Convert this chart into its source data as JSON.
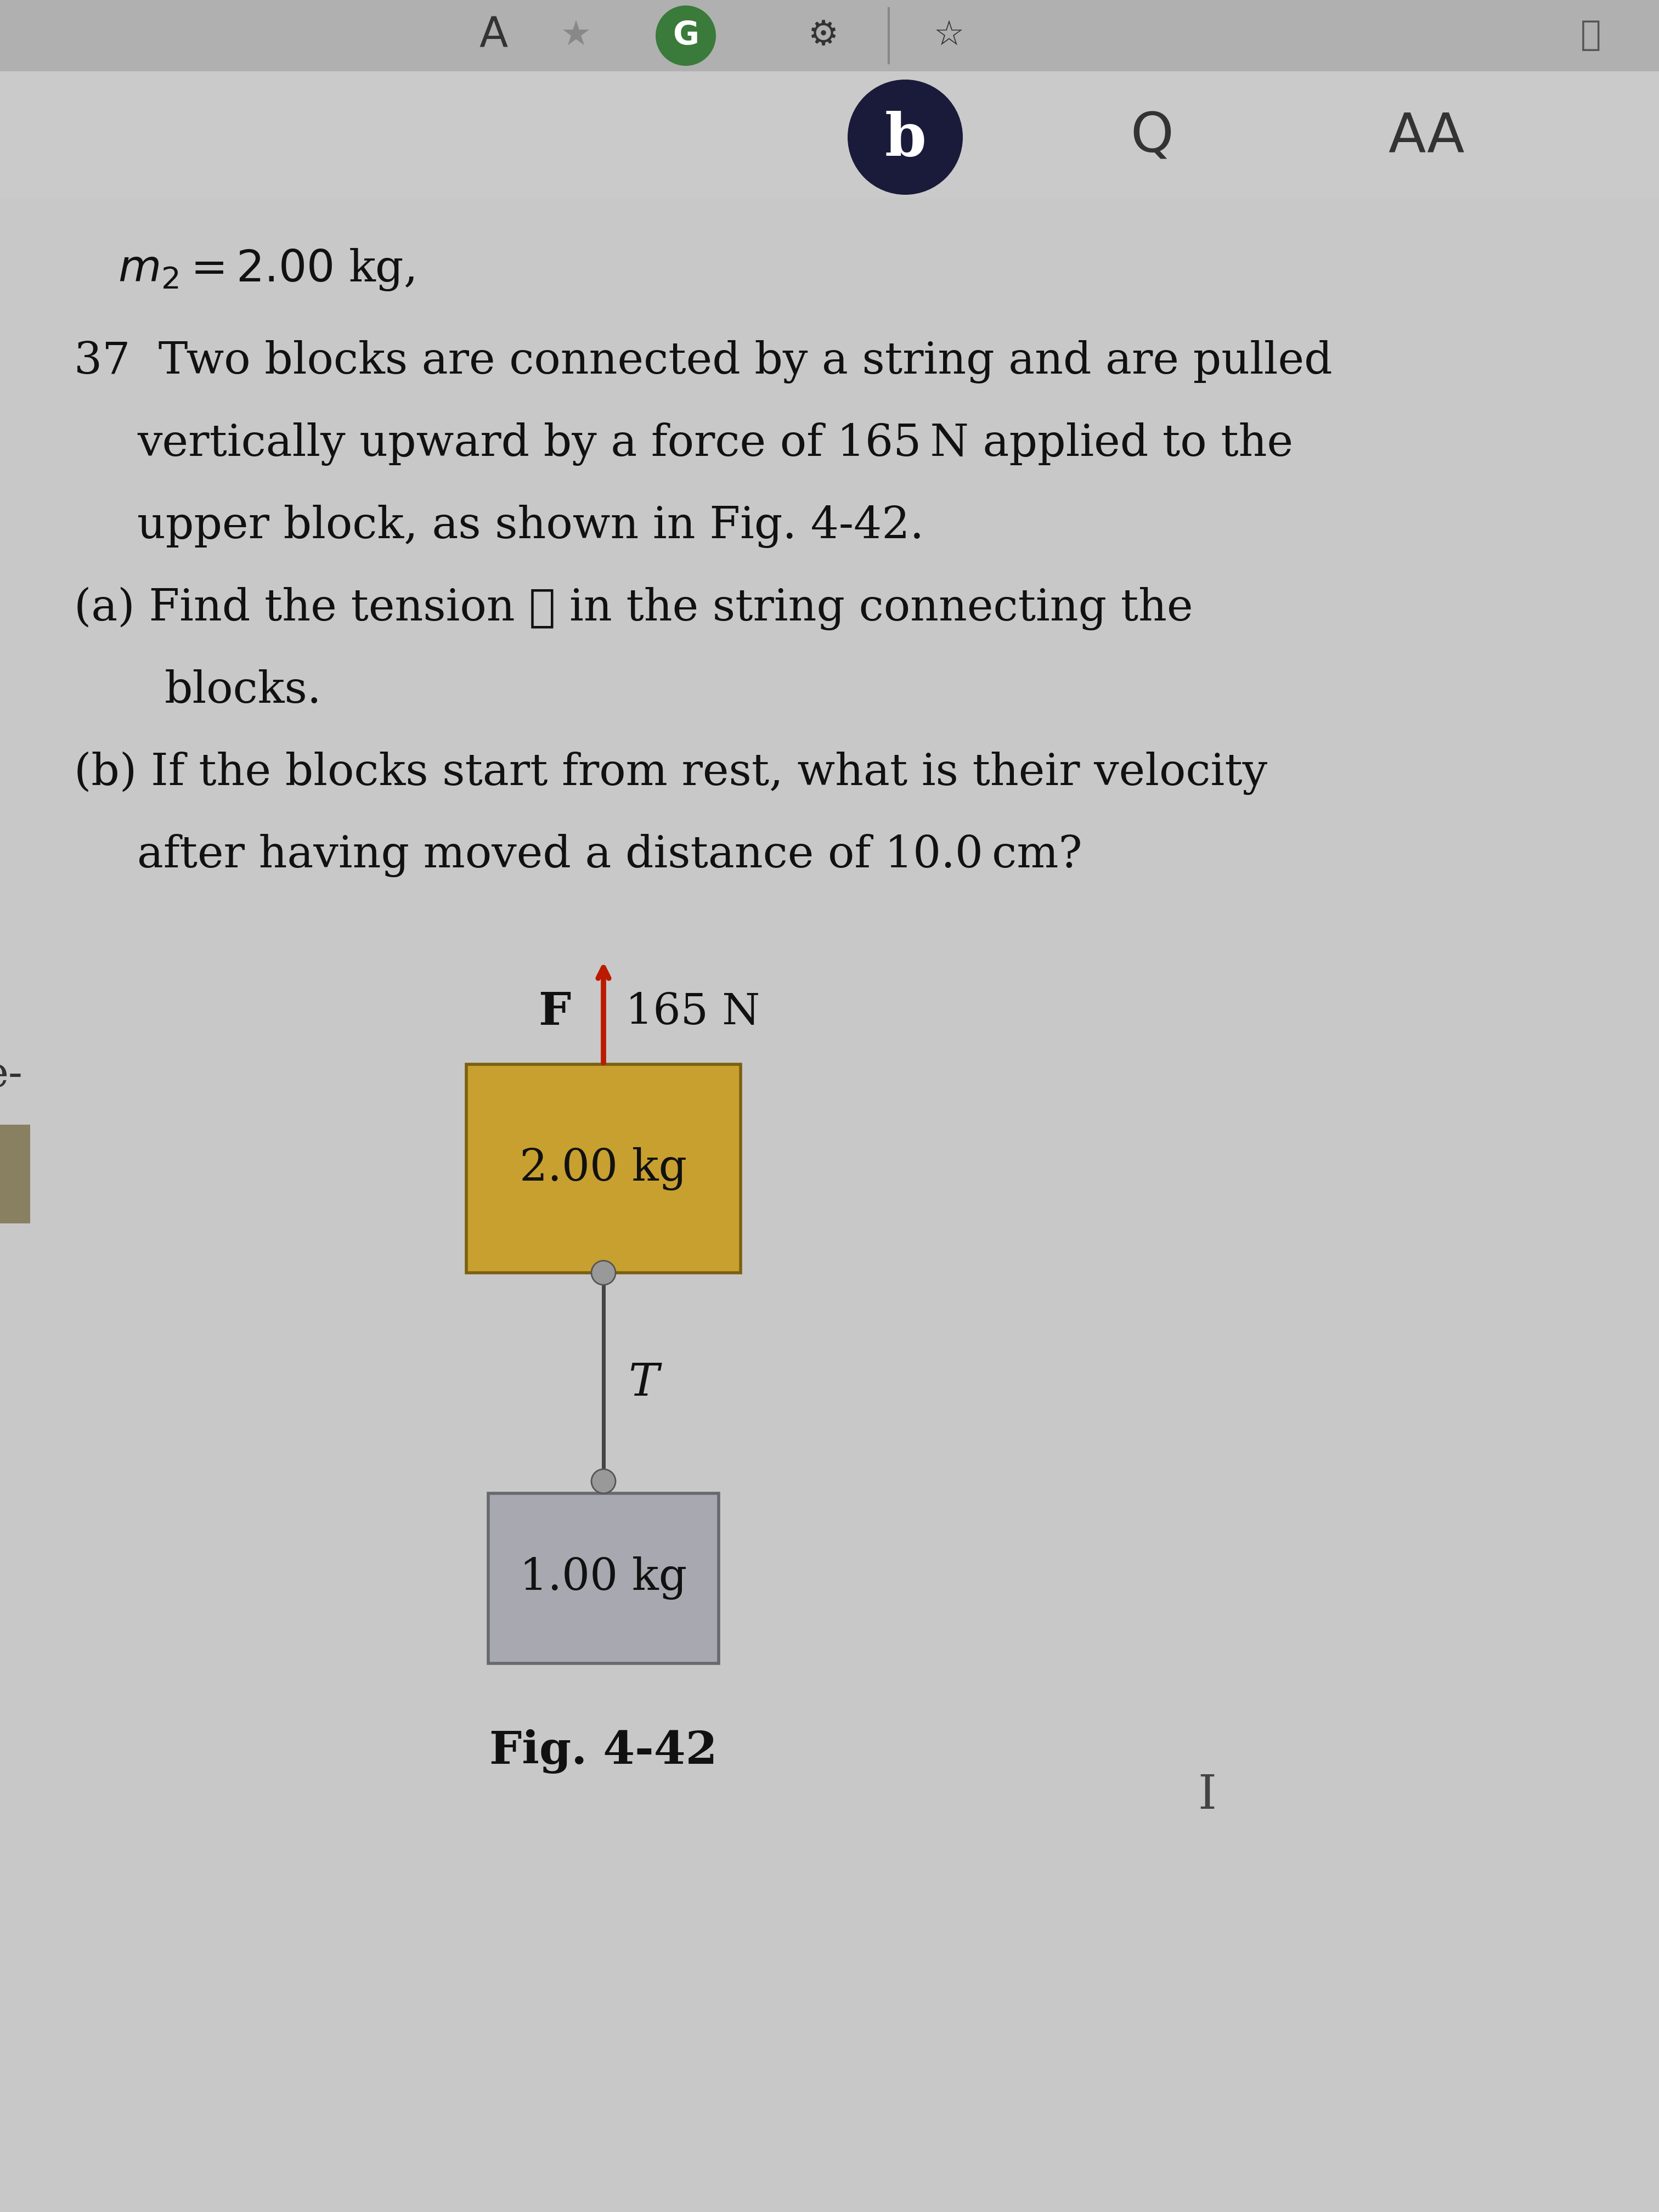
{
  "bg_color": "#c2c2c2",
  "toolbar_top_bg": "#b5b5b5",
  "toolbar_bottom_bg": "#c0c0c0",
  "page_bg": "#c8c8c8",
  "text_color": "#111111",
  "block1_label": "2.00 kg",
  "block2_label": "1.00 kg",
  "force_label": "165 N",
  "F_label": "F",
  "T_label": "T",
  "fig_caption": "Fig. 4-42",
  "block1_color": "#c8a030",
  "block2_color": "#a8a8b0",
  "block1_edge_color": "#7a6010",
  "block2_edge_color": "#686870",
  "arrow_color": "#bb1a00",
  "string_color": "#444444",
  "dot_color": "#888888",
  "b_circle_color": "#1a1a3a",
  "left_margin_text": "e-",
  "m2_line": "m₂ = 2.00 kg,",
  "line1": "37  Two blocks are connected by a string and are pulled",
  "line2": "      vertically upward by a force of 165 N applied to the",
  "line3": "      upper block, as shown in Fig. 4-42.",
  "line4": "(a) Find the tension T in the string connecting the",
  "line5": "      blocks.",
  "line6": "(b) If the blocks start from rest, what is their velocity",
  "line7": "      after having moved a distance of 10.0 cm?"
}
